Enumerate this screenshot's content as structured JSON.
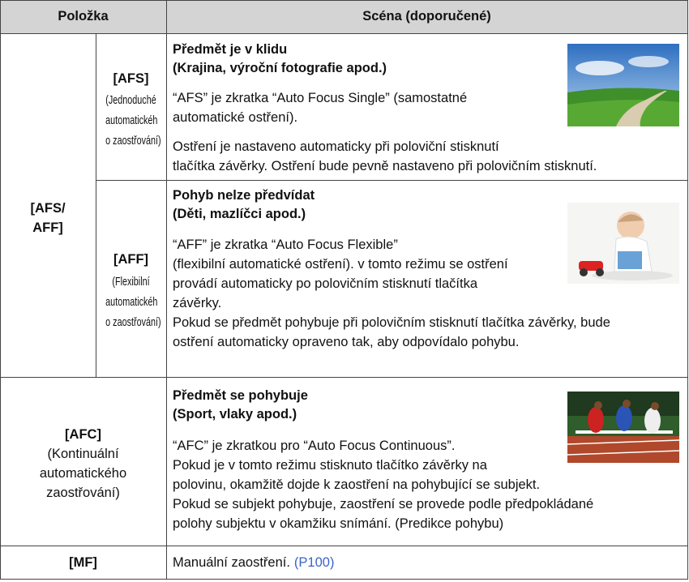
{
  "header": [
    "Položka",
    "Scéna (doporučené)"
  ],
  "group_label": [
    "[AFS/",
    "AFF]"
  ],
  "rows": [
    {
      "mode": "[AFS]",
      "mode_desc": [
        "(Jednoduché",
        "automatickéh",
        "o zaostřování)"
      ],
      "title": [
        "Předmět je v klidu",
        "(Krajina, výroční fotografie apod.)"
      ],
      "paragraphs": [
        [
          "“AFS” je zkratka “Auto Focus Single” (samostatné",
          "automatické ostření)."
        ],
        [
          "Ostření je nastaveno automaticky při poloviční stisknutí",
          "tlačítka závěrky. Ostření bude pevně nastaveno při polovičním stisknutí."
        ]
      ]
    },
    {
      "mode": "[AFF]",
      "mode_desc": [
        "(Flexibilní",
        "automatickéh",
        "o zaostřování)"
      ],
      "title": [
        "Pohyb nelze předvídat",
        "(Děti, mazlíčci apod.)"
      ],
      "paragraphs": [
        [
          "“AFF” je zkratka “Auto Focus Flexible”",
          "(flexibilní automatické ostření). v tomto režimu se ostření",
          "provádí automaticky po polovičním stisknutí tlačítka",
          "závěrky.",
          "Pokud se předmět pohybuje při polovičním stisknutí tlačítka závěrky, bude",
          "ostření automaticky opraveno tak, aby odpovídalo pohybu."
        ]
      ]
    },
    {
      "mode_lines": [
        "[AFC]",
        "(Kontinuální",
        "automatického",
        "zaostřování)"
      ],
      "title": [
        "Předmět se pohybuje",
        "(Sport, vlaky apod.)"
      ],
      "paragraphs": [
        [
          "“AFC” je zkratkou pro “Auto Focus Continuous”.",
          "Pokud je v tomto režimu stisknuto tlačítko závěrky na",
          "polovinu, okamžitě dojde k zaostření na pohybující se subjekt.",
          "Pokud se subjekt pohybuje, zaostření se provede podle předpokládané",
          "polohy subjektu v okamžiku snímání. (Predikce pohybu)"
        ]
      ]
    },
    {
      "mode": "[MF]",
      "text": "Manuální zaostření.",
      "link": "(P100)"
    }
  ]
}
